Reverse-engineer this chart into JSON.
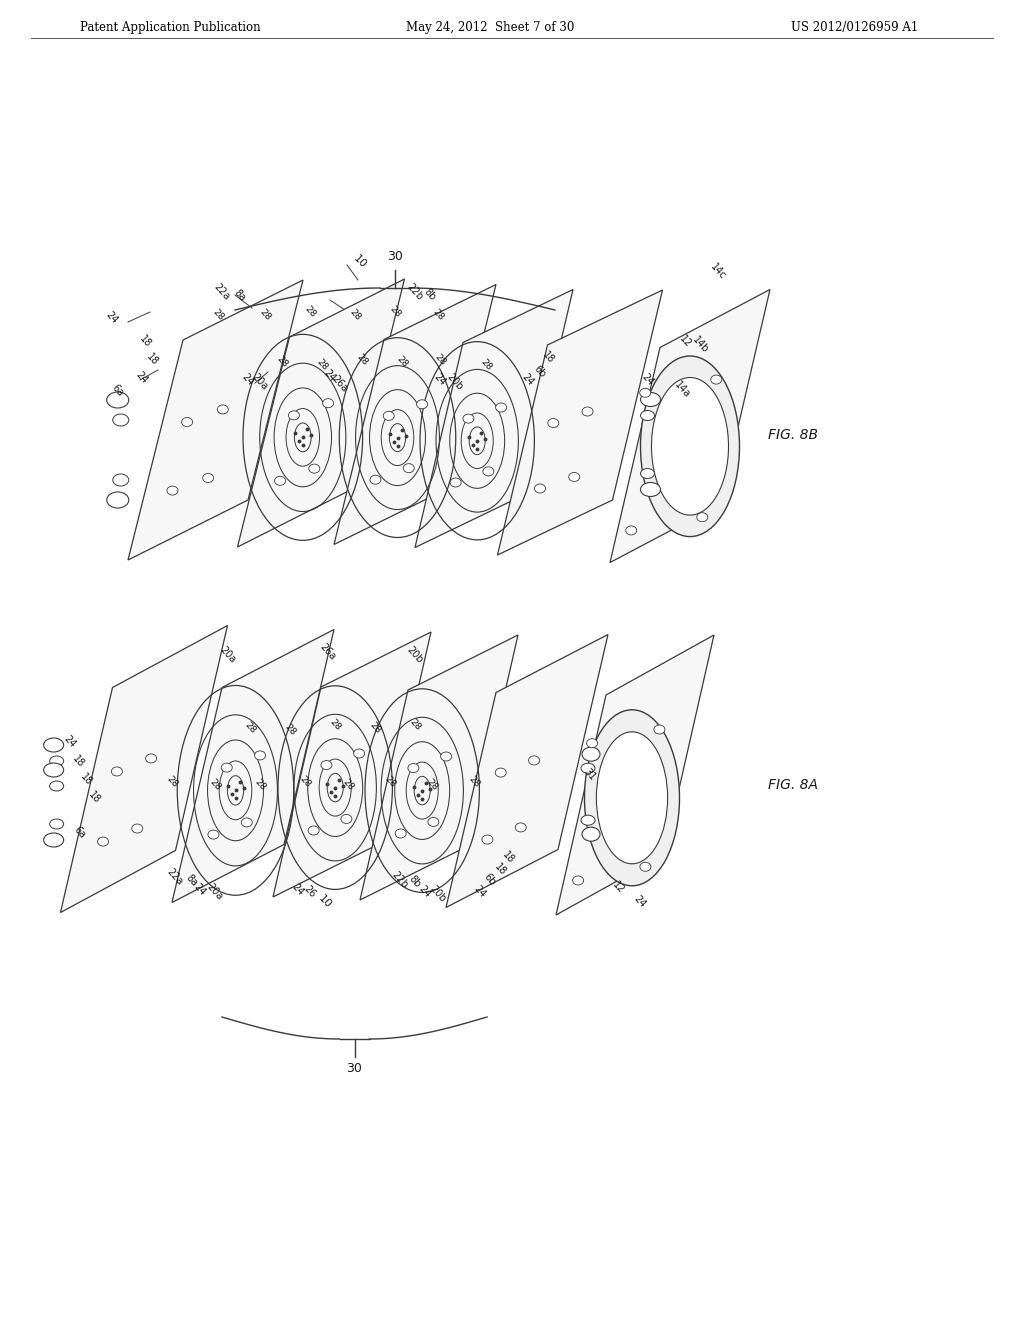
{
  "header_left": "Patent Application Publication",
  "header_center": "May 24, 2012  Sheet 7 of 30",
  "header_right": "US 2012/0126959 A1",
  "fig8b_label": "FIG. 8B",
  "fig8a_label": "FIG. 8A",
  "bg_color": "#ffffff",
  "line_color": "#3a3a3a",
  "text_color": "#1a1a1a"
}
